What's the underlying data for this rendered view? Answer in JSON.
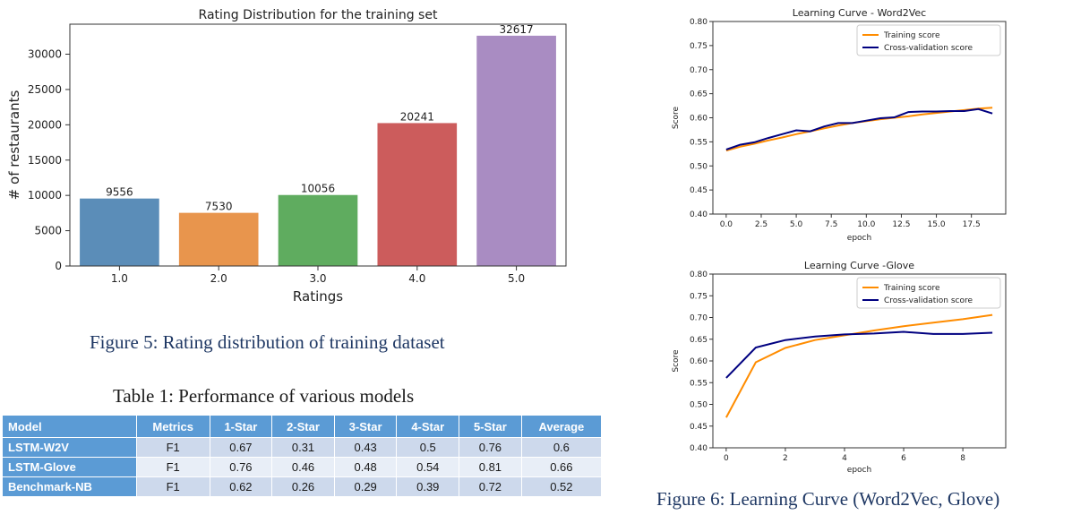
{
  "bar_chart": {
    "title": "Rating Distribution for the training set",
    "xlabel": "Ratings",
    "ylabel": "# of restaurants"
  },
  "chart_data": [
    {
      "type": "bar",
      "title": "Rating Distribution for the training set",
      "xlabel": "Ratings",
      "ylabel": "# of restaurants",
      "categories": [
        "1.0",
        "2.0",
        "3.0",
        "4.0",
        "5.0"
      ],
      "values": [
        9556,
        7530,
        10056,
        20241,
        32617
      ],
      "value_labels": [
        "9556",
        "7530",
        "10056",
        "20241",
        "32617"
      ],
      "colors": [
        "#5b8db8",
        "#e8954d",
        "#5fac5f",
        "#cc5c5c",
        "#a98cc2"
      ],
      "ylim": [
        0,
        34250
      ],
      "yticks": [
        0,
        5000,
        10000,
        15000,
        20000,
        25000,
        30000
      ],
      "ytick_labels": [
        "0",
        "5000",
        "10000",
        "15000",
        "20000",
        "25000",
        "30000"
      ]
    },
    {
      "type": "line",
      "title": "Learning Curve - Word2Vec",
      "xlabel": "epoch",
      "ylabel": "Score",
      "legend_position": "top-right",
      "xlim": [
        -0.95,
        19.95
      ],
      "ylim": [
        0.4,
        0.8
      ],
      "xticks": [
        0,
        2.5,
        5,
        7.5,
        10,
        12.5,
        15,
        17.5
      ],
      "xtick_labels": [
        "0.0",
        "2.5",
        "5.0",
        "7.5",
        "10.0",
        "12.5",
        "15.0",
        "17.5"
      ],
      "yticks": [
        0.4,
        0.45,
        0.5,
        0.55,
        0.6,
        0.65,
        0.7,
        0.75,
        0.8
      ],
      "ytick_labels": [
        "0.40",
        "0.45",
        "0.50",
        "0.55",
        "0.60",
        "0.65",
        "0.70",
        "0.75",
        "0.80"
      ],
      "x": [
        0,
        1,
        2,
        3,
        4,
        5,
        6,
        7,
        8,
        9,
        10,
        11,
        12,
        13,
        14,
        15,
        16,
        17,
        18,
        19
      ],
      "series": [
        {
          "name": "Training score",
          "color": "#ff8c00",
          "values": [
            0.532,
            0.54,
            0.546,
            0.553,
            0.559,
            0.566,
            0.572,
            0.578,
            0.584,
            0.589,
            0.593,
            0.597,
            0.6,
            0.603,
            0.607,
            0.61,
            0.613,
            0.616,
            0.619,
            0.621
          ]
        },
        {
          "name": "Cross-validation score",
          "color": "#000080",
          "values": [
            0.534,
            0.544,
            0.549,
            0.558,
            0.566,
            0.574,
            0.572,
            0.582,
            0.589,
            0.589,
            0.594,
            0.599,
            0.601,
            0.612,
            0.613,
            0.613,
            0.614,
            0.614,
            0.618,
            0.609
          ]
        }
      ]
    },
    {
      "type": "line",
      "title": "Learning Curve -Glove",
      "xlabel": "epoch",
      "ylabel": "Score",
      "legend_position": "top-right",
      "xlim": [
        -0.45,
        9.45
      ],
      "ylim": [
        0.4,
        0.8
      ],
      "xticks": [
        0,
        2,
        4,
        6,
        8
      ],
      "xtick_labels": [
        "0",
        "2",
        "4",
        "6",
        "8"
      ],
      "yticks": [
        0.4,
        0.45,
        0.5,
        0.55,
        0.6,
        0.65,
        0.7,
        0.75,
        0.8
      ],
      "ytick_labels": [
        "0.40",
        "0.45",
        "0.50",
        "0.55",
        "0.60",
        "0.65",
        "0.70",
        "0.75",
        "0.80"
      ],
      "x": [
        0,
        1,
        2,
        3,
        4,
        5,
        6,
        7,
        8,
        9
      ],
      "series": [
        {
          "name": "Training score",
          "color": "#ff8c00",
          "values": [
            0.47,
            0.597,
            0.63,
            0.648,
            0.659,
            0.67,
            0.68,
            0.688,
            0.696,
            0.706
          ]
        },
        {
          "name": "Cross-validation score",
          "color": "#000080",
          "values": [
            0.561,
            0.631,
            0.648,
            0.656,
            0.661,
            0.663,
            0.667,
            0.662,
            0.662,
            0.665
          ]
        }
      ]
    },
    {
      "type": "table",
      "title": "Table 1: Performance of various models",
      "columns": [
        "Model",
        "Metrics",
        "1-Star",
        "2-Star",
        "3-Star",
        "4-Star",
        "5-Star",
        "Average"
      ],
      "rows": [
        [
          "LSTM-W2V",
          "F1",
          "0.67",
          "0.31",
          "0.43",
          "0.5",
          "0.76",
          "0.6"
        ],
        [
          "LSTM-Glove",
          "F1",
          "0.76",
          "0.46",
          "0.48",
          "0.54",
          "0.81",
          "0.66"
        ],
        [
          "Benchmark-NB",
          "F1",
          "0.62",
          "0.26",
          "0.29",
          "0.39",
          "0.72",
          "0.52"
        ]
      ]
    }
  ],
  "captions": {
    "figure5": "Figure 5: Rating distribution of training dataset",
    "table1": "Table 1: Performance of various models",
    "figure6": "Figure 6: Learning Curve (Word2Vec, Glove)"
  }
}
